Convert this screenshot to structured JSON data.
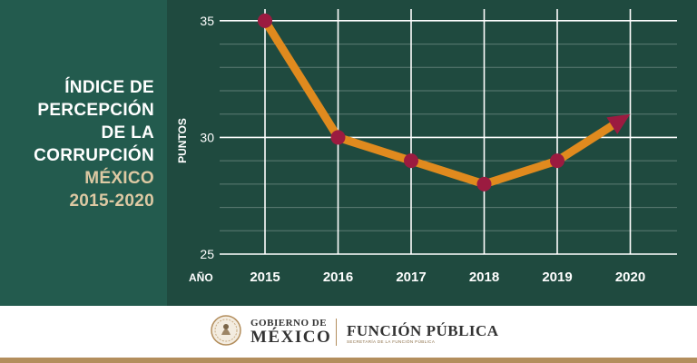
{
  "title_lines": [
    "ÍNDICE DE",
    "PERCEPCIÓN",
    "DE LA",
    "CORRUPCIÓN",
    "MÉXICO",
    "2015-2020"
  ],
  "colors": {
    "panel": "#235b4e",
    "chart_bg": "#1f4a3f",
    "line": "#e08a1e",
    "marker": "#9b1b40",
    "accent_text": "#ddc9a3",
    "footer_stripe": "#b38e5d"
  },
  "footer": {
    "gobierno_de": "GOBIERNO DE",
    "mexico": "MÉXICO",
    "funcion_publica": "FUNCIÓN PÚBLICA",
    "secretaria": "SECRETARÍA DE LA FUNCIÓN PÚBLICA"
  },
  "chart_data": {
    "type": "line",
    "title": "",
    "xlabel": "AÑO",
    "ylabel": "PUNTOS",
    "x": [
      2015,
      2016,
      2017,
      2018,
      2019
    ],
    "x_ticks": [
      2015,
      2016,
      2017,
      2018,
      2019,
      2020
    ],
    "y": [
      35,
      30,
      29,
      28,
      29
    ],
    "y_ticks": [
      25,
      30,
      35
    ],
    "ylim": [
      25,
      35.5
    ],
    "trend_arrow_to": [
      2020,
      31
    ],
    "grid": true,
    "legend": "none"
  }
}
